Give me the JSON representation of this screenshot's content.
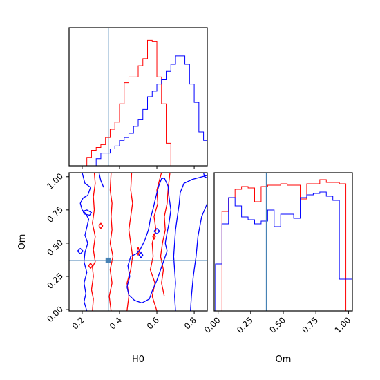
{
  "chart_data": {
    "type": "corner",
    "parameters": [
      "H0",
      "Om"
    ],
    "truths": {
      "H0": 0.34,
      "Om": 0.37
    },
    "truth_color": "#4682b4",
    "series": [
      {
        "color": "#ff0000"
      },
      {
        "color": "#0000ff"
      }
    ],
    "panels": [
      {
        "id": "hist-H0",
        "type": "histogram",
        "parameter": "H0",
        "xlim": [
          0.13,
          0.87
        ],
        "ymax": 0.98,
        "bin_edges": [
          0.2,
          0.225,
          0.25,
          0.275,
          0.3,
          0.325,
          0.35,
          0.375,
          0.4,
          0.425,
          0.45,
          0.475,
          0.5,
          0.525,
          0.55,
          0.575,
          0.6,
          0.625,
          0.65,
          0.675,
          0.7,
          0.725,
          0.75,
          0.775,
          0.8,
          0.825,
          0.85,
          0.875
        ],
        "series_values": [
          [
            0.0,
            0.06,
            0.11,
            0.13,
            0.15,
            0.2,
            0.26,
            0.31,
            0.44,
            0.59,
            0.63,
            0.63,
            0.71,
            0.76,
            0.89,
            0.88,
            0.63,
            0.44,
            0.16,
            0.0,
            0.0,
            0.0,
            0.0,
            0.0,
            0.0,
            0.0,
            0.0
          ],
          [
            0.0,
            0.0,
            0.0,
            0.05,
            0.09,
            0.09,
            0.12,
            0.14,
            0.18,
            0.2,
            0.23,
            0.28,
            0.33,
            0.4,
            0.49,
            0.53,
            0.58,
            0.61,
            0.67,
            0.72,
            0.78,
            0.78,
            0.72,
            0.58,
            0.45,
            0.24,
            0.18
          ]
        ]
      },
      {
        "id": "contour-H0-Om",
        "type": "contour",
        "xlabel": "H0",
        "ylabel": "Om",
        "xlim": [
          0.13,
          0.87
        ],
        "ylim": [
          -0.01,
          1.03
        ],
        "xticks": [
          0.2,
          0.4,
          0.6,
          0.8
        ],
        "xticklabels": [
          "0.2",
          "0.4",
          "0.6",
          "0.8"
        ],
        "yticks": [
          0.0,
          0.25,
          0.5,
          0.75,
          1.0
        ],
        "yticklabels": [
          "0.00",
          "0.25",
          "0.50",
          "0.75",
          "1.00"
        ],
        "contours": [
          {
            "series": 0,
            "points": [
              [
                0.255,
                -0.01
              ],
              [
                0.26,
                0.08
              ],
              [
                0.25,
                0.15
              ],
              [
                0.26,
                0.25
              ],
              [
                0.255,
                0.32
              ],
              [
                0.27,
                0.36
              ],
              [
                0.26,
                0.45
              ],
              [
                0.27,
                0.55
              ],
              [
                0.255,
                0.65
              ],
              [
                0.265,
                0.75
              ],
              [
                0.26,
                0.85
              ],
              [
                0.27,
                0.95
              ],
              [
                0.265,
                1.03
              ]
            ]
          },
          {
            "series": 0,
            "points": [
              [
                0.355,
                -0.01
              ],
              [
                0.345,
                0.1
              ],
              [
                0.36,
                0.2
              ],
              [
                0.35,
                0.3
              ],
              [
                0.365,
                0.4
              ],
              [
                0.35,
                0.5
              ],
              [
                0.36,
                0.6
              ],
              [
                0.355,
                0.7
              ],
              [
                0.36,
                0.8
              ],
              [
                0.35,
                0.9
              ],
              [
                0.355,
                1.03
              ]
            ]
          },
          {
            "series": 0,
            "points": [
              [
                0.44,
                -0.01
              ],
              [
                0.45,
                0.1
              ],
              [
                0.44,
                0.2
              ],
              [
                0.46,
                0.3
              ],
              [
                0.47,
                0.4
              ],
              [
                0.46,
                0.5
              ],
              [
                0.45,
                0.6
              ],
              [
                0.46,
                0.7
              ],
              [
                0.47,
                0.8
              ],
              [
                0.46,
                0.9
              ],
              [
                0.465,
                1.03
              ]
            ]
          },
          {
            "series": 0,
            "points": [
              [
                0.6,
                -0.01
              ],
              [
                0.575,
                0.1
              ],
              [
                0.59,
                0.2
              ],
              [
                0.565,
                0.3
              ],
              [
                0.58,
                0.4
              ],
              [
                0.575,
                0.5
              ],
              [
                0.595,
                0.6
              ],
              [
                0.585,
                0.7
              ],
              [
                0.605,
                0.8
              ],
              [
                0.6,
                0.9
              ],
              [
                0.615,
                0.98
              ],
              [
                0.625,
                1.03
              ]
            ]
          },
          {
            "series": 0,
            "points": [
              [
                0.64,
                0.1
              ],
              [
                0.625,
                0.2
              ],
              [
                0.635,
                0.3
              ],
              [
                0.62,
                0.4
              ],
              [
                0.63,
                0.5
              ],
              [
                0.645,
                0.6
              ],
              [
                0.64,
                0.7
              ],
              [
                0.655,
                0.8
              ],
              [
                0.66,
                0.9
              ],
              [
                0.67,
                1.03
              ]
            ]
          },
          {
            "series": 0,
            "closed": true,
            "points": [
              [
                0.3,
                0.61
              ],
              [
                0.31,
                0.63
              ],
              [
                0.3,
                0.65
              ],
              [
                0.29,
                0.63
              ]
            ]
          },
          {
            "series": 0,
            "closed": true,
            "points": [
              [
                0.245,
                0.31
              ],
              [
                0.255,
                0.33
              ],
              [
                0.245,
                0.35
              ],
              [
                0.235,
                0.33
              ]
            ]
          },
          {
            "series": 0,
            "closed": true,
            "points": [
              [
                0.5,
                0.41
              ],
              [
                0.506,
                0.44
              ],
              [
                0.5,
                0.47
              ],
              [
                0.494,
                0.44
              ]
            ]
          },
          {
            "series": 0,
            "closed": true,
            "points": [
              [
                0.585,
                0.53
              ],
              [
                0.592,
                0.55
              ],
              [
                0.585,
                0.57
              ],
              [
                0.578,
                0.55
              ]
            ]
          },
          {
            "series": 1,
            "points": [
              [
                0.2,
                1.03
              ],
              [
                0.215,
                0.95
              ],
              [
                0.245,
                0.92
              ],
              [
                0.23,
                0.86
              ],
              [
                0.205,
                0.84
              ],
              [
                0.19,
                0.8
              ],
              [
                0.2,
                0.75
              ],
              [
                0.22,
                0.72
              ],
              [
                0.235,
                0.68
              ],
              [
                0.225,
                0.62
              ],
              [
                0.215,
                0.56
              ],
              [
                0.23,
                0.5
              ],
              [
                0.215,
                0.43
              ],
              [
                0.21,
                0.36
              ],
              [
                0.225,
                0.28
              ],
              [
                0.21,
                0.2
              ],
              [
                0.22,
                0.12
              ],
              [
                0.21,
                0.06
              ],
              [
                0.225,
                -0.01
              ]
            ]
          },
          {
            "series": 1,
            "points": [
              [
                0.29,
                1.03
              ],
              [
                0.3,
                0.97
              ],
              [
                0.315,
                0.92
              ]
            ]
          },
          {
            "series": 1,
            "closed": true,
            "points": [
              [
                0.21,
                0.72
              ],
              [
                0.24,
                0.71
              ],
              [
                0.25,
                0.73
              ],
              [
                0.225,
                0.75
              ],
              [
                0.205,
                0.74
              ]
            ]
          },
          {
            "series": 1,
            "closed": true,
            "points": [
              [
                0.19,
                0.42
              ],
              [
                0.205,
                0.44
              ],
              [
                0.19,
                0.46
              ],
              [
                0.175,
                0.44
              ]
            ]
          },
          {
            "series": 1,
            "points": [
              [
                0.66,
                0.93
              ],
              [
                0.665,
                0.85
              ],
              [
                0.675,
                0.75
              ],
              [
                0.665,
                0.65
              ],
              [
                0.655,
                0.58
              ],
              [
                0.645,
                0.5
              ],
              [
                0.655,
                0.44
              ],
              [
                0.64,
                0.38
              ],
              [
                0.62,
                0.3
              ],
              [
                0.6,
                0.22
              ],
              [
                0.575,
                0.14
              ],
              [
                0.56,
                0.08
              ],
              [
                0.52,
                0.05
              ],
              [
                0.48,
                0.07
              ],
              [
                0.45,
                0.11
              ],
              [
                0.44,
                0.17
              ],
              [
                0.455,
                0.25
              ],
              [
                0.445,
                0.33
              ],
              [
                0.46,
                0.4
              ],
              [
                0.49,
                0.42
              ],
              [
                0.51,
                0.45
              ],
              [
                0.535,
                0.52
              ],
              [
                0.555,
                0.6
              ],
              [
                0.565,
                0.68
              ],
              [
                0.58,
                0.76
              ],
              [
                0.595,
                0.85
              ],
              [
                0.61,
                0.93
              ],
              [
                0.625,
                0.985
              ],
              [
                0.64,
                0.99
              ],
              [
                0.66,
                0.93
              ]
            ]
          },
          {
            "series": 1,
            "points": [
              [
                0.87,
                1.01
              ],
              [
                0.79,
                0.98
              ],
              [
                0.745,
                0.95
              ],
              [
                0.725,
                0.88
              ],
              [
                0.72,
                0.8
              ],
              [
                0.71,
                0.7
              ],
              [
                0.7,
                0.6
              ],
              [
                0.695,
                0.5
              ],
              [
                0.69,
                0.4
              ],
              [
                0.695,
                0.3
              ],
              [
                0.7,
                0.2
              ],
              [
                0.695,
                0.1
              ],
              [
                0.7,
                -0.01
              ]
            ]
          },
          {
            "series": 1,
            "points": [
              [
                0.87,
                0.8
              ],
              [
                0.84,
                0.7
              ],
              [
                0.82,
                0.55
              ],
              [
                0.81,
                0.4
              ],
              [
                0.795,
                0.25
              ],
              [
                0.785,
                0.1
              ],
              [
                0.78,
                -0.01
              ]
            ]
          },
          {
            "series": 1,
            "closed": true,
            "points": [
              [
                0.6,
                0.57
              ],
              [
                0.615,
                0.59
              ],
              [
                0.6,
                0.61
              ],
              [
                0.585,
                0.59
              ]
            ]
          },
          {
            "series": 1,
            "closed": true,
            "points": [
              [
                0.515,
                0.39
              ],
              [
                0.525,
                0.41
              ],
              [
                0.515,
                0.43
              ],
              [
                0.505,
                0.41
              ]
            ]
          },
          {
            "series": 1,
            "points": [
              [
                0.85,
                1.03
              ],
              [
                0.855,
                1.0
              ],
              [
                0.87,
                0.99
              ]
            ]
          }
        ]
      },
      {
        "id": "hist-Om",
        "type": "histogram",
        "parameter": "Om",
        "xlabel": "Om",
        "xlim": [
          -0.03,
          1.03
        ],
        "ymax": 1.0,
        "xticks": [
          0.0,
          0.25,
          0.5,
          0.75,
          1.0
        ],
        "xticklabels": [
          "0.00",
          "0.25",
          "0.50",
          "0.75",
          "1.00"
        ],
        "bin_edges": [
          -0.02,
          0.03,
          0.08,
          0.13,
          0.18,
          0.23,
          0.28,
          0.33,
          0.38,
          0.43,
          0.48,
          0.53,
          0.58,
          0.63,
          0.68,
          0.73,
          0.78,
          0.83,
          0.88,
          0.93,
          0.98,
          1.03
        ],
        "series_values": [
          [
            0.0,
            0.72,
            0.82,
            0.88,
            0.9,
            0.89,
            0.79,
            0.9,
            0.91,
            0.91,
            0.92,
            0.91,
            0.91,
            0.81,
            0.92,
            0.92,
            0.95,
            0.93,
            0.93,
            0.92,
            0.0
          ],
          [
            0.34,
            0.63,
            0.82,
            0.76,
            0.68,
            0.66,
            0.63,
            0.65,
            0.73,
            0.61,
            0.7,
            0.7,
            0.67,
            0.82,
            0.84,
            0.85,
            0.86,
            0.83,
            0.8,
            0.23,
            0.23
          ]
        ]
      }
    ]
  }
}
